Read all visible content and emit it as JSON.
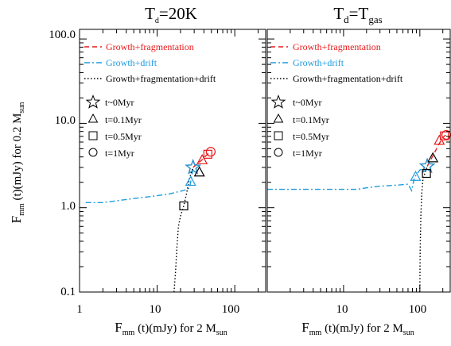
{
  "chart_data": [
    {
      "type": "line",
      "panel": "left",
      "title": "T",
      "title_sub": "d",
      "title_rest": "=20K",
      "xlabel": "F",
      "xlabel_sub": "mm",
      "xlabel_rest": " (t)(mJy) for 2 M",
      "xlabel_sub2": "sun",
      "ylabel": "F",
      "ylabel_sub": "mm",
      "ylabel_rest": " (t)(mJy) for 0.2 M",
      "ylabel_sub2": "sun",
      "xscale": "log",
      "yscale": "log",
      "xlim": [
        1,
        250
      ],
      "ylim": [
        0.1,
        130
      ],
      "x_ticks": [
        "1",
        "10",
        "100"
      ],
      "y_ticks": [
        "0.1",
        "1.0",
        "10.0",
        "100.0"
      ],
      "legend": {
        "lines": [
          "Growth+fragmentation",
          "Growth+drift",
          "Growth+fragmentation+drift"
        ],
        "markers": [
          "t~0Myr",
          "t=0.1Myr",
          "t=0.5Myr",
          "t=1Myr"
        ]
      },
      "series": [
        {
          "name": "Growth+fragmentation",
          "color": "#e8191b",
          "style": "dashed",
          "points": [
            [
              29,
              3.0
            ],
            [
              34,
              3.4
            ],
            [
              38,
              3.7
            ],
            [
              42,
              4.1
            ],
            [
              46,
              4.4
            ],
            [
              49,
              4.6
            ]
          ]
        },
        {
          "name": "Growth+drift",
          "color": "#1e9be0",
          "style": "dashdot",
          "points": [
            [
              1.2,
              1.15
            ],
            [
              2.0,
              1.15
            ],
            [
              4.0,
              1.25
            ],
            [
              8.0,
              1.35
            ],
            [
              14,
              1.45
            ],
            [
              22,
              1.6
            ],
            [
              26,
              1.7
            ],
            [
              27,
              2.0
            ],
            [
              29,
              3.0
            ]
          ]
        },
        {
          "name": "Growth+fragmentation+drift",
          "color": "#000000",
          "style": "dotted",
          "points": [
            [
              16.5,
              0.1
            ],
            [
              17.3,
              0.18
            ],
            [
              18,
              0.35
            ],
            [
              18.8,
              0.6
            ],
            [
              20,
              0.8
            ],
            [
              22,
              1.05
            ],
            [
              24,
              1.5
            ],
            [
              26,
              2.2
            ],
            [
              29,
              3.0
            ]
          ]
        }
      ],
      "markers": [
        {
          "shape": "star",
          "color": "#000000",
          "x": 29,
          "y": 3.0
        },
        {
          "shape": "star",
          "color": "#1e9be0",
          "x": 29,
          "y": 3.0
        },
        {
          "shape": "triangle",
          "color": "#e8191b",
          "x": 38,
          "y": 3.7
        },
        {
          "shape": "triangle",
          "color": "#000000",
          "x": 35,
          "y": 2.65
        },
        {
          "shape": "triangle",
          "color": "#1e9be0",
          "x": 27,
          "y": 2.05
        },
        {
          "shape": "square",
          "color": "#e8191b",
          "x": 45,
          "y": 4.3
        },
        {
          "shape": "square",
          "color": "#000000",
          "x": 22,
          "y": 1.05
        },
        {
          "shape": "circle",
          "color": "#e8191b",
          "x": 49,
          "y": 4.6
        }
      ]
    },
    {
      "type": "line",
      "panel": "right",
      "title": "T",
      "title_sub": "d",
      "title_rest": "=T",
      "title_sub2": "gas",
      "xlabel": "F",
      "xlabel_sub": "mm",
      "xlabel_rest": " (t)(mJy) for 2 M",
      "xlabel_sub2": "sun",
      "xscale": "log",
      "yscale": "log",
      "xlim": [
        1,
        250
      ],
      "ylim": [
        0.1,
        130
      ],
      "x_ticks": [
        "10",
        "100"
      ],
      "legend": {
        "lines": [
          "Growth+fragmentation",
          "Growth+drift",
          "Growth+fragmentation+drift"
        ],
        "markers": [
          "t~0Myr",
          "t=0.1Myr",
          "t=0.5Myr",
          "t=1Myr"
        ]
      },
      "series": [
        {
          "name": "Growth+fragmentation",
          "color": "#e8191b",
          "style": "dashed",
          "points": [
            [
              125,
              3.1
            ],
            [
              150,
              4.2
            ],
            [
              175,
              5.5
            ],
            [
              200,
              6.8
            ],
            [
              220,
              7.3
            ]
          ]
        },
        {
          "name": "Growth+drift",
          "color": "#1e9be0",
          "style": "dashdot",
          "points": [
            [
              1.0,
              1.65
            ],
            [
              5,
              1.65
            ],
            [
              15,
              1.65
            ],
            [
              20,
              1.72
            ],
            [
              30,
              1.8
            ],
            [
              50,
              1.85
            ],
            [
              70,
              1.9
            ],
            [
              78,
              1.6
            ],
            [
              85,
              2.3
            ],
            [
              100,
              2.8
            ],
            [
              125,
              3.1
            ]
          ]
        },
        {
          "name": "Growth+fragmentation+drift",
          "color": "#000000",
          "style": "dotted",
          "points": [
            [
              100,
              0.1
            ],
            [
              101,
              0.3
            ],
            [
              103,
              0.8
            ],
            [
              106,
              1.5
            ],
            [
              110,
              2.2
            ],
            [
              125,
              3.1
            ]
          ]
        }
      ],
      "markers": [
        {
          "shape": "star",
          "color": "#000000",
          "x": 125,
          "y": 3.1
        },
        {
          "shape": "star",
          "color": "#1e9be0",
          "x": 125,
          "y": 3.1
        },
        {
          "shape": "triangle",
          "color": "#e8191b",
          "x": 180,
          "y": 6.3
        },
        {
          "shape": "triangle",
          "color": "#000000",
          "x": 148,
          "y": 3.9
        },
        {
          "shape": "triangle",
          "color": "#1e9be0",
          "x": 88,
          "y": 2.35
        },
        {
          "shape": "square",
          "color": "#e8191b",
          "x": 210,
          "y": 7.1
        },
        {
          "shape": "square",
          "color": "#000000",
          "x": 122,
          "y": 2.55
        },
        {
          "shape": "circle",
          "color": "#e8191b",
          "x": 222,
          "y": 7.3
        }
      ]
    }
  ]
}
